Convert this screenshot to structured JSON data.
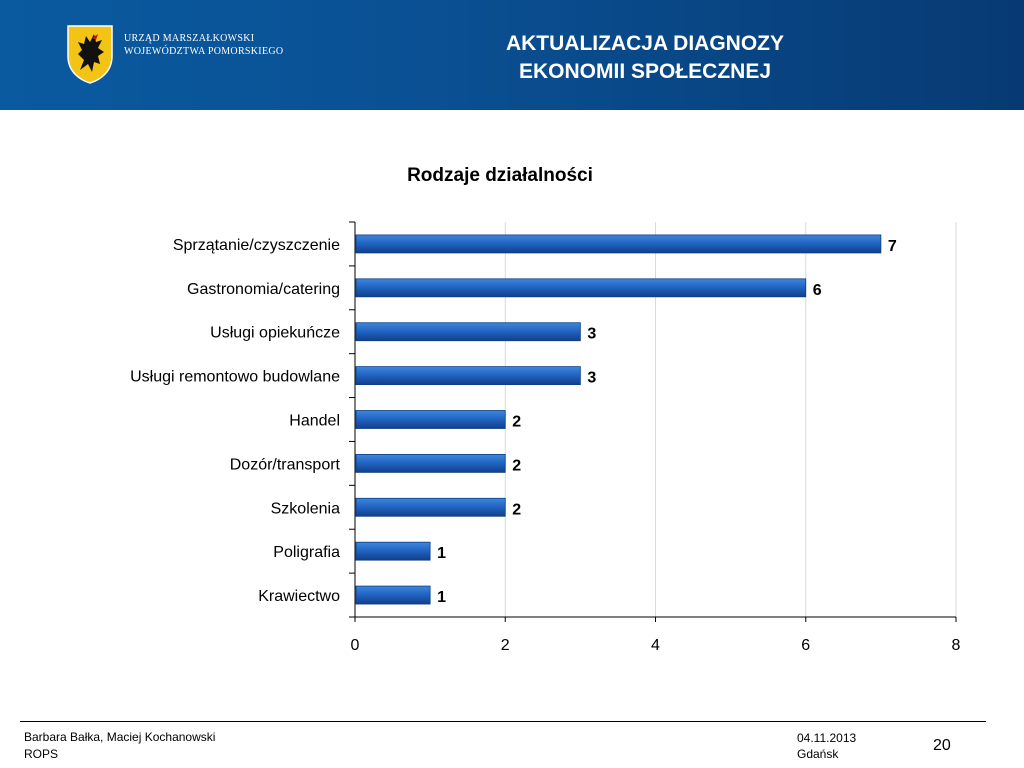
{
  "header": {
    "org_line1": "URZĄD MARSZAŁKOWSKI",
    "org_line2": "WOJEWÓDZTWA POMORSKIEGO",
    "title_line1": "AKTUALIZACJA DIAGNOZY",
    "title_line2": "EKONOMII SPOŁECZNEJ",
    "logo_icon": "griffin-coat-of-arms-icon"
  },
  "chart_data": {
    "type": "bar",
    "orientation": "horizontal",
    "title": "Rodzaje działalności",
    "categories": [
      "Sprzątanie/czyszczenie",
      "Gastronomia/catering",
      "Usługi opiekuńcze",
      "Usługi remontowo budowlane",
      "Handel",
      "Dozór/transport",
      "Szkolenia",
      "Poligrafia",
      "Krawiectwo"
    ],
    "values": [
      7,
      6,
      3,
      3,
      2,
      2,
      2,
      1,
      1
    ],
    "xlim": [
      0,
      8
    ],
    "xticks": [
      0,
      2,
      4,
      6,
      8
    ],
    "xlabel": "",
    "ylabel": "",
    "grid": true,
    "data_labels": true,
    "bar_color": "#1f62c0"
  },
  "footer": {
    "authors": "Barbara Bałka, Maciej Kochanowski",
    "org": "ROPS",
    "date": "04.11.2013",
    "city": "Gdańsk",
    "page_number": "20"
  }
}
